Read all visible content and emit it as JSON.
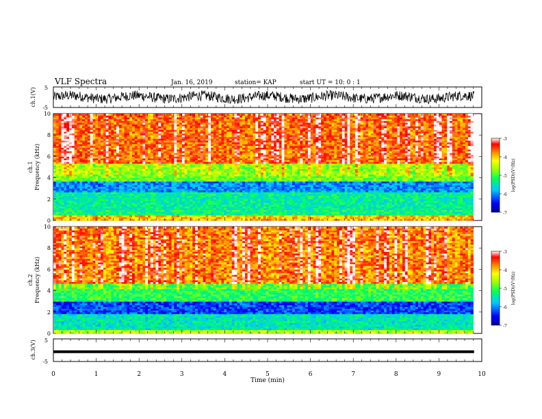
{
  "header": {
    "title": "VLF Spectra",
    "date": "Jan. 16, 2019",
    "station": "station= KAP",
    "start_ut": "start  UT  =   10: 0  : 1"
  },
  "chart_data": [
    {
      "type": "line",
      "name_label": "ch.1(V)",
      "ylim": [
        -5,
        5
      ],
      "yticks": [
        "5",
        "-5"
      ],
      "xlim": [
        0,
        10
      ],
      "x_unit": "min",
      "series": [
        {
          "color": "#000000",
          "level": 0,
          "noise_amplitude": 2.5
        }
      ]
    },
    {
      "type": "heatmap",
      "ylabel": "Frequency (kHz)",
      "channel_label": "ch.1",
      "ylim": [
        0,
        10
      ],
      "yticks": [
        "0",
        "2",
        "4",
        "6",
        "8",
        "10"
      ],
      "xlim": [
        0,
        10
      ],
      "data_extent_min": 9.8,
      "colorbar": {
        "label": "log(PSD)(V²/Hz)",
        "range": [
          -7,
          -3
        ],
        "ticks": [
          "-3",
          "-4",
          "-5",
          "-6",
          "-7"
        ]
      },
      "frequency_profile_khz": [
        [
          0,
          0.5,
          -4.0
        ],
        [
          0.5,
          1.0,
          -5.3
        ],
        [
          1.0,
          2.6,
          -5.4
        ],
        [
          2.6,
          3.6,
          -6.0
        ],
        [
          3.6,
          5.4,
          -4.8
        ],
        [
          5.4,
          10,
          -3.8
        ]
      ]
    },
    {
      "type": "heatmap",
      "ylabel": "Frequency (kHz)",
      "channel_label": "ch.2",
      "ylim": [
        0,
        10
      ],
      "yticks": [
        "0",
        "2",
        "4",
        "6",
        "8",
        "10"
      ],
      "xlim": [
        0,
        10
      ],
      "data_extent_min": 9.8,
      "colorbar": {
        "label": "log(PSD)(V²/Hz)",
        "range": [
          -7,
          -3
        ],
        "ticks": [
          "-3",
          "-4",
          "-5",
          "-6",
          "-7"
        ]
      },
      "frequency_profile_khz": [
        [
          0,
          0.4,
          -4.5
        ],
        [
          0.4,
          1.8,
          -5.5
        ],
        [
          1.8,
          3.0,
          -6.3
        ],
        [
          3.0,
          4.6,
          -5.1
        ],
        [
          4.6,
          10,
          -3.9
        ]
      ]
    },
    {
      "type": "line",
      "name_label": "ch.3(V)",
      "ylim": [
        -5,
        5
      ],
      "yticks": [
        "5",
        "-5"
      ],
      "xlim": [
        0,
        10
      ],
      "xlabel": "Time (min)",
      "xticks": [
        "0",
        "1",
        "2",
        "3",
        "4",
        "5",
        "6",
        "7",
        "8",
        "9",
        "10"
      ],
      "series": [
        {
          "color": "#000000",
          "level": -0.7,
          "noise_amplitude": 0
        }
      ]
    }
  ]
}
